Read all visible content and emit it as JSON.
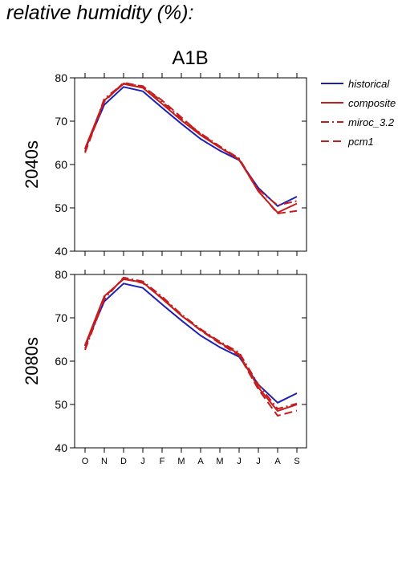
{
  "header": {
    "title": "relative humidity (%):"
  },
  "chart_data": {
    "type": "line",
    "title": "A1B",
    "xlabel": "",
    "categories": [
      "O",
      "N",
      "D",
      "J",
      "F",
      "M",
      "A",
      "M",
      "J",
      "J",
      "A",
      "S"
    ],
    "ylim": [
      40,
      80
    ],
    "yticks": [
      40,
      50,
      60,
      70,
      80
    ],
    "legend_position": "top-right",
    "legend": [
      {
        "name": "historical",
        "color": "#1f1fb4",
        "dash": "solid"
      },
      {
        "name": "composite",
        "color": "#c41e1e",
        "dash": "solid"
      },
      {
        "name": "miroc_3.2",
        "color": "#c41e1e",
        "dash": "dashdot"
      },
      {
        "name": "pcm1",
        "color": "#c41e1e",
        "dash": "dashed"
      }
    ],
    "panels": [
      {
        "label": "2040s",
        "series": [
          {
            "name": "historical",
            "values": [
              63.5,
              73.8,
              77.9,
              76.9,
              73.1,
              69.4,
              65.9,
              63.2,
              61.0,
              54.6,
              50.4,
              52.6
            ]
          },
          {
            "name": "composite",
            "values": [
              63.7,
              74.8,
              78.6,
              77.7,
              74.0,
              70.2,
              66.8,
              63.9,
              61.2,
              53.8,
              48.9,
              51.0
            ]
          },
          {
            "name": "miroc_3.2",
            "values": [
              63.0,
              75.2,
              78.7,
              78.1,
              74.5,
              70.6,
              67.2,
              64.2,
              61.4,
              54.2,
              50.6,
              51.6
            ]
          },
          {
            "name": "pcm1",
            "values": [
              62.7,
              74.5,
              78.9,
              78.0,
              74.8,
              70.9,
              67.0,
              64.1,
              61.1,
              53.9,
              48.7,
              49.3
            ]
          }
        ]
      },
      {
        "label": "2080s",
        "series": [
          {
            "name": "historical",
            "values": [
              63.5,
              73.8,
              77.9,
              76.9,
              73.1,
              69.4,
              65.9,
              63.2,
              61.0,
              54.6,
              50.4,
              52.6
            ]
          },
          {
            "name": "composite",
            "values": [
              63.7,
              75.0,
              78.9,
              78.2,
              74.4,
              70.5,
              67.2,
              64.3,
              61.6,
              53.9,
              48.5,
              50.0
            ]
          },
          {
            "name": "miroc_3.2",
            "values": [
              62.6,
              74.3,
              79.3,
              78.4,
              74.9,
              70.8,
              67.4,
              64.5,
              62.0,
              54.6,
              49.0,
              50.2
            ]
          },
          {
            "name": "pcm1",
            "values": [
              62.9,
              74.8,
              79.1,
              78.0,
              74.6,
              70.6,
              67.1,
              64.1,
              61.3,
              53.5,
              47.4,
              48.6
            ]
          }
        ]
      }
    ]
  }
}
